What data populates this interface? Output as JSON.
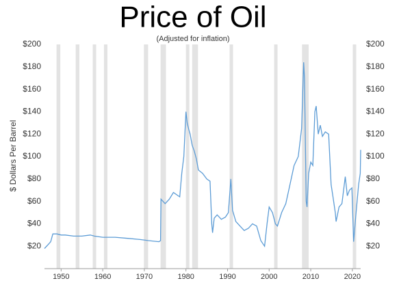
{
  "chart_data": {
    "type": "line",
    "title": "Price of Oil",
    "subtitle": "(Adjusted for inflation)",
    "y_label": "$ Dollars Per Barrel",
    "xlim": [
      1946,
      2022
    ],
    "xticks": [
      1950,
      1960,
      1970,
      1980,
      1990,
      2000,
      2010,
      2020
    ],
    "ylim": [
      0,
      200
    ],
    "yticks": [
      {
        "value": 20,
        "label": "$20"
      },
      {
        "value": 40,
        "label": "$40"
      },
      {
        "value": 60,
        "label": "$60"
      },
      {
        "value": 80,
        "label": "$80"
      },
      {
        "value": 100,
        "label": "$100"
      },
      {
        "value": 120,
        "label": "$120"
      },
      {
        "value": 140,
        "label": "$140"
      },
      {
        "value": 160,
        "label": "$160"
      },
      {
        "value": 180,
        "label": "$180"
      },
      {
        "value": 200,
        "label": "$200"
      }
    ],
    "y2lim": [
      0,
      200
    ],
    "y2ticks": [
      {
        "value": 20,
        "label": "$20"
      },
      {
        "value": 40,
        "label": "$40"
      },
      {
        "value": 60,
        "label": "$60"
      },
      {
        "value": 80,
        "label": "$80"
      },
      {
        "value": 100,
        "label": "$100"
      },
      {
        "value": 120,
        "label": "$120"
      },
      {
        "value": 140,
        "label": "$140"
      },
      {
        "value": 160,
        "label": "$160"
      },
      {
        "value": 180,
        "label": "$180"
      },
      {
        "value": 200,
        "label": "$200"
      }
    ],
    "grid": false,
    "recession_color": "#e3e3e3",
    "recessions": [
      [
        1948.9,
        1949.8
      ],
      [
        1953.5,
        1954.4
      ],
      [
        1957.6,
        1958.3
      ],
      [
        1960.3,
        1961.1
      ],
      [
        1969.9,
        1970.9
      ],
      [
        1973.9,
        1975.2
      ],
      [
        1980.0,
        1980.5
      ],
      [
        1981.5,
        1982.9
      ],
      [
        1990.5,
        1991.2
      ],
      [
        2001.2,
        2001.9
      ],
      [
        2007.9,
        2009.5
      ],
      [
        2020.1,
        2020.4
      ]
    ],
    "x": [
      1946.0,
      1947.0,
      1947.5,
      1948.0,
      1949.0,
      1950.0,
      1951.0,
      1953.0,
      1955.0,
      1957.0,
      1958.0,
      1960.0,
      1963.0,
      1966.0,
      1969.0,
      1971.0,
      1973.5,
      1973.9,
      1974.0,
      1975.0,
      1976.0,
      1977.0,
      1978.5,
      1979.0,
      1979.5,
      1980.0,
      1980.3,
      1980.7,
      1981.0,
      1981.5,
      1982.0,
      1982.5,
      1983.0,
      1984.0,
      1985.0,
      1985.8,
      1986.2,
      1986.4,
      1986.8,
      1987.5,
      1988.5,
      1989.5,
      1990.2,
      1990.8,
      1991.2,
      1992.0,
      1993.0,
      1994.0,
      1995.0,
      1996.0,
      1997.0,
      1998.0,
      1998.9,
      1999.5,
      2000.0,
      2000.8,
      2001.5,
      2002.0,
      2003.0,
      2004.0,
      2005.0,
      2006.0,
      2007.0,
      2007.8,
      2008.3,
      2008.5,
      2008.9,
      2009.1,
      2009.5,
      2010.0,
      2010.5,
      2011.0,
      2011.3,
      2011.8,
      2012.3,
      2012.8,
      2013.5,
      2014.3,
      2014.9,
      2015.3,
      2015.9,
      2016.1,
      2016.8,
      2017.5,
      2018.3,
      2018.8,
      2019.3,
      2019.9,
      2020.3,
      2020.9,
      2021.5,
      2021.9,
      2022.0
    ],
    "series": [
      {
        "name": "Price of Oil",
        "color": "#5b9bd5",
        "values": [
          18,
          22,
          24,
          31,
          31,
          30,
          30,
          29,
          29,
          30,
          29,
          28,
          28,
          27,
          26,
          25,
          24,
          25,
          62,
          58,
          62,
          68,
          64,
          85,
          100,
          140,
          130,
          124,
          120,
          110,
          105,
          98,
          88,
          85,
          80,
          78,
          40,
          32,
          45,
          48,
          44,
          46,
          50,
          80,
          52,
          42,
          38,
          34,
          36,
          40,
          38,
          25,
          20,
          40,
          55,
          50,
          40,
          38,
          50,
          58,
          75,
          92,
          100,
          125,
          184,
          170,
          60,
          55,
          85,
          95,
          92,
          140,
          145,
          120,
          128,
          118,
          122,
          120,
          75,
          65,
          50,
          42,
          55,
          58,
          82,
          65,
          70,
          72,
          24,
          50,
          75,
          85,
          106
        ]
      }
    ]
  }
}
